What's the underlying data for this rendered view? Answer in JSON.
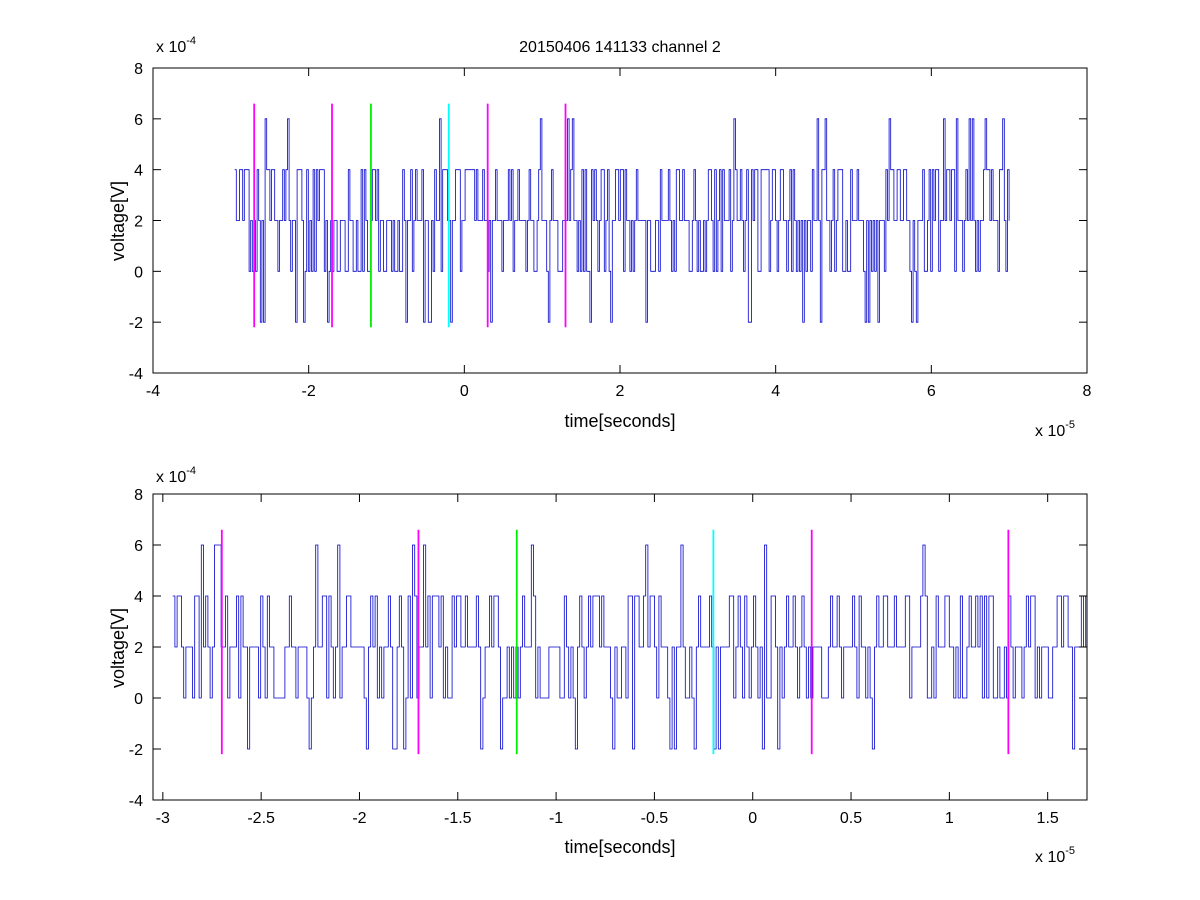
{
  "chart_data": [
    {
      "type": "line",
      "title": "20150406 141133 channel 2",
      "xlabel": "time[seconds]",
      "ylabel": "voltage[V]",
      "x_multiplier_label": "x 10",
      "x_multiplier_exp": "-5",
      "y_multiplier_label": "x 10",
      "y_multiplier_exp": "-4",
      "xlim": [
        -4,
        8
      ],
      "ylim": [
        -4,
        8
      ],
      "x_units_scale": "1e-5",
      "y_units_scale": "1e-4",
      "xticks": [
        -4,
        -2,
        0,
        2,
        4,
        6,
        8
      ],
      "xtick_labels": [
        "-4",
        "-2",
        "0",
        "2",
        "4",
        "6",
        "8"
      ],
      "yticks": [
        -4,
        -2,
        0,
        2,
        4,
        6,
        8
      ],
      "ytick_labels": [
        "-4",
        "-2",
        "0",
        "2",
        "4",
        "6",
        "8"
      ],
      "grid": false,
      "signal": {
        "color": "#0000cc",
        "x_start": -2.95,
        "x_end": 7.0,
        "levels": [
          -2,
          0,
          2,
          4,
          6
        ],
        "baseline": 2,
        "y_range": [
          -2,
          6
        ]
      },
      "markers": [
        {
          "x": -2.7,
          "color": "#ff00ff"
        },
        {
          "x": -1.7,
          "color": "#ff00ff"
        },
        {
          "x": -1.2,
          "color": "#00ee00"
        },
        {
          "x": -0.2,
          "color": "#00ffff"
        },
        {
          "x": 0.3,
          "color": "#ff00ff"
        },
        {
          "x": 1.3,
          "color": "#ff00ff"
        }
      ],
      "marker_y_range": [
        -2.2,
        6.6
      ]
    },
    {
      "type": "line",
      "title": "",
      "xlabel": "time[seconds]",
      "ylabel": "voltage[V]",
      "x_multiplier_label": "x 10",
      "x_multiplier_exp": "-5",
      "y_multiplier_label": "x 10",
      "y_multiplier_exp": "-4",
      "xlim": [
        -3.05,
        1.7
      ],
      "ylim": [
        -4,
        8
      ],
      "x_units_scale": "1e-5",
      "y_units_scale": "1e-4",
      "xticks": [
        -3,
        -2.5,
        -2,
        -1.5,
        -1,
        -0.5,
        0,
        0.5,
        1,
        1.5
      ],
      "xtick_labels": [
        "-3",
        "-2.5",
        "-2",
        "-1.5",
        "-1",
        "-0.5",
        "0",
        "0.5",
        "1",
        "1.5"
      ],
      "yticks": [
        -4,
        -2,
        0,
        2,
        4,
        6,
        8
      ],
      "ytick_labels": [
        "-4",
        "-2",
        "0",
        "2",
        "4",
        "6",
        "8"
      ],
      "grid": false,
      "signal": {
        "color": "#0000cc",
        "x_start": -2.95,
        "x_end": 1.7,
        "levels": [
          -2,
          0,
          2,
          4,
          6
        ],
        "baseline": 2,
        "y_range": [
          -2,
          6
        ]
      },
      "markers": [
        {
          "x": -2.7,
          "color": "#ff00ff"
        },
        {
          "x": -1.7,
          "color": "#ff00ff"
        },
        {
          "x": -1.2,
          "color": "#00ee00"
        },
        {
          "x": -0.2,
          "color": "#00ffff"
        },
        {
          "x": 0.3,
          "color": "#ff00ff"
        },
        {
          "x": 1.3,
          "color": "#ff00ff"
        }
      ],
      "marker_y_range": [
        -2.2,
        6.6
      ]
    }
  ]
}
